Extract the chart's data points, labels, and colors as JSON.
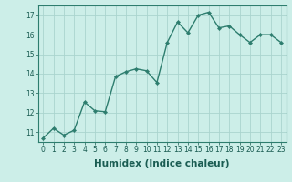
{
  "x": [
    0,
    1,
    2,
    3,
    4,
    5,
    6,
    7,
    8,
    9,
    10,
    11,
    12,
    13,
    14,
    15,
    16,
    17,
    18,
    19,
    20,
    21,
    22,
    23
  ],
  "y": [
    10.7,
    11.2,
    10.85,
    11.1,
    12.55,
    12.1,
    12.05,
    13.85,
    14.1,
    14.25,
    14.15,
    13.55,
    15.6,
    16.65,
    16.1,
    17.0,
    17.15,
    16.35,
    16.45,
    16.0,
    15.6,
    16.0,
    16.0,
    15.6
  ],
  "line_color": "#2d7d6e",
  "marker": "D",
  "marker_size": 2.2,
  "bg_color": "#cceee8",
  "grid_color": "#aad4ce",
  "xlabel": "Humidex (Indice chaleur)",
  "ylim": [
    10.5,
    17.5
  ],
  "xlim": [
    -0.5,
    23.5
  ],
  "yticks": [
    11,
    12,
    13,
    14,
    15,
    16,
    17
  ],
  "xticks": [
    0,
    1,
    2,
    3,
    4,
    5,
    6,
    7,
    8,
    9,
    10,
    11,
    12,
    13,
    14,
    15,
    16,
    17,
    18,
    19,
    20,
    21,
    22,
    23
  ],
  "tick_fontsize": 5.5,
  "xlabel_fontsize": 7.5,
  "line_width": 1.0
}
